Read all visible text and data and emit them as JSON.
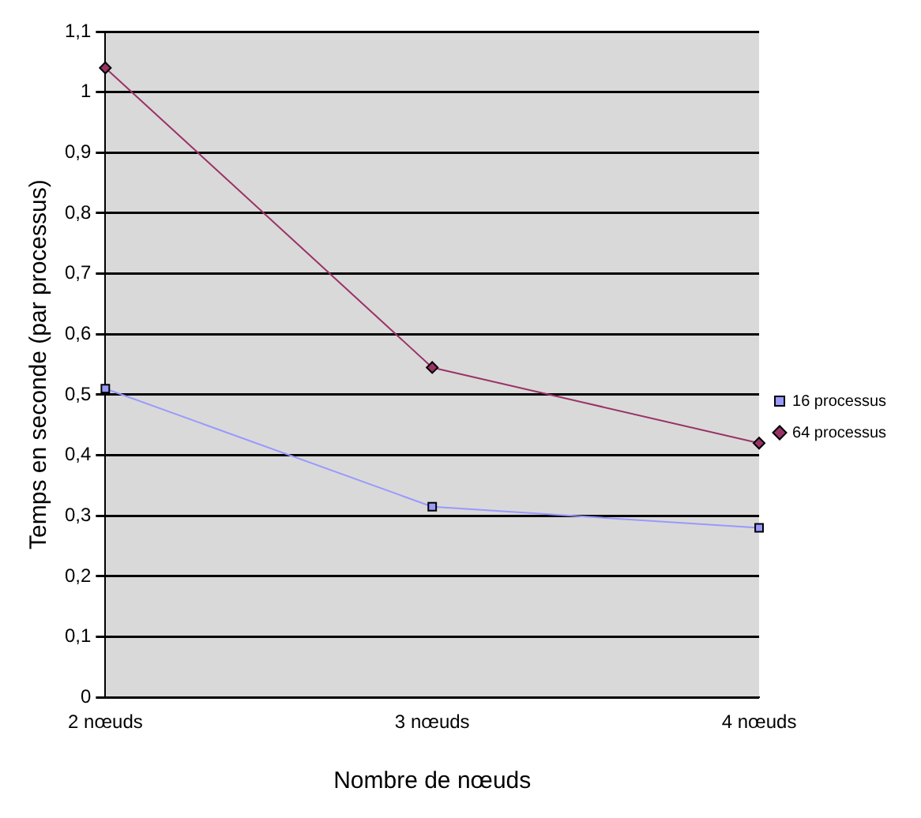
{
  "chart_data": {
    "type": "line",
    "xlabel": "Nombre de nœuds",
    "ylabel": "Temps en seconde (par processus)",
    "categories": [
      "2 nœuds",
      "3 nœuds",
      "4 nœuds"
    ],
    "series": [
      {
        "name": "16 processus",
        "color": "#9999ff",
        "values": [
          0.51,
          0.315,
          0.28
        ],
        "marker": "square"
      },
      {
        "name": "64 processus",
        "color": "#993366",
        "values": [
          1.04,
          0.545,
          0.42
        ],
        "marker": "diamond"
      }
    ],
    "ylim": [
      0,
      1.1
    ],
    "yticks": [
      {
        "value": 0,
        "label": "0"
      },
      {
        "value": 0.1,
        "label": "0,1"
      },
      {
        "value": 0.2,
        "label": "0,2"
      },
      {
        "value": 0.3,
        "label": "0,3"
      },
      {
        "value": 0.4,
        "label": "0,4"
      },
      {
        "value": 0.5,
        "label": "0,5"
      },
      {
        "value": 0.6,
        "label": "0,6"
      },
      {
        "value": 0.7,
        "label": "0,7"
      },
      {
        "value": 0.8,
        "label": "0,8"
      },
      {
        "value": 0.9,
        "label": "0,9"
      },
      {
        "value": 1,
        "label": "1"
      },
      {
        "value": 1.1,
        "label": "1,1"
      }
    ],
    "grid": "y",
    "legend": "right",
    "line_style": "solid"
  }
}
